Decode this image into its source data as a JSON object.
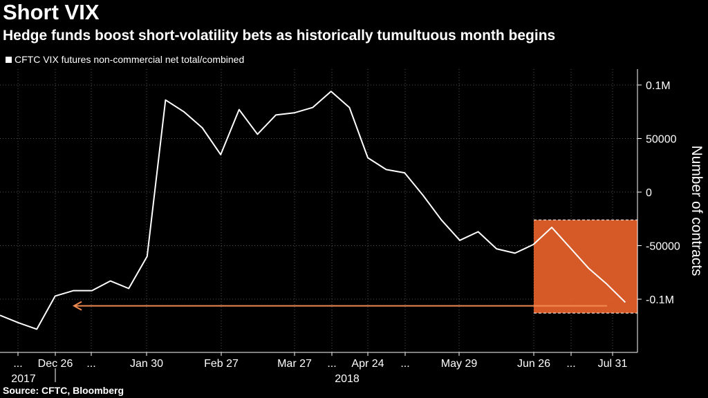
{
  "chart_data": {
    "type": "line",
    "title": "Short VIX",
    "subtitle": "Hedge funds boost short-volatility bets as historically tumultuous month begins",
    "legend": "CFTC VIX futures non-commercial net total/combined",
    "ylabel": "Number of contracts",
    "ylim": [
      -150000,
      110000
    ],
    "yticks": [
      {
        "value": 100000,
        "label": "0.1M"
      },
      {
        "value": 50000,
        "label": "50000"
      },
      {
        "value": 0,
        "label": "0"
      },
      {
        "value": -50000,
        "label": "-50000"
      },
      {
        "value": -100000,
        "label": "-0.1M"
      }
    ],
    "xticks": [
      "...",
      "Dec 26",
      "...",
      "Jan 30",
      "Feb 27",
      "Mar 27",
      "...",
      "Apr 24",
      "...",
      "May 29",
      "Jun 26",
      "...",
      "Jul 31"
    ],
    "year_labels": [
      "2017",
      "2018"
    ],
    "series": [
      {
        "values": [
          -115000,
          -122000,
          -128000,
          -97000,
          -92000,
          -92000,
          -83000,
          -90000,
          -60000,
          86000,
          75000,
          60000,
          35000,
          77000,
          54000,
          72000,
          74000,
          79000,
          94000,
          79000,
          32000,
          21000,
          18000,
          -3000,
          -26000,
          -45000,
          -37000,
          -53000,
          -57000,
          -49000,
          -33000,
          -52000,
          -71000,
          -86000,
          -103000
        ]
      }
    ],
    "highlight": {
      "x_from": "Jun 26",
      "y_range": [
        -113000,
        -26000
      ],
      "color": "#e8622a"
    },
    "annotation_arrow": {
      "y": -103000,
      "color": "#f08a50"
    },
    "grid": true
  },
  "source": "Source: CFTC, Bloomberg"
}
